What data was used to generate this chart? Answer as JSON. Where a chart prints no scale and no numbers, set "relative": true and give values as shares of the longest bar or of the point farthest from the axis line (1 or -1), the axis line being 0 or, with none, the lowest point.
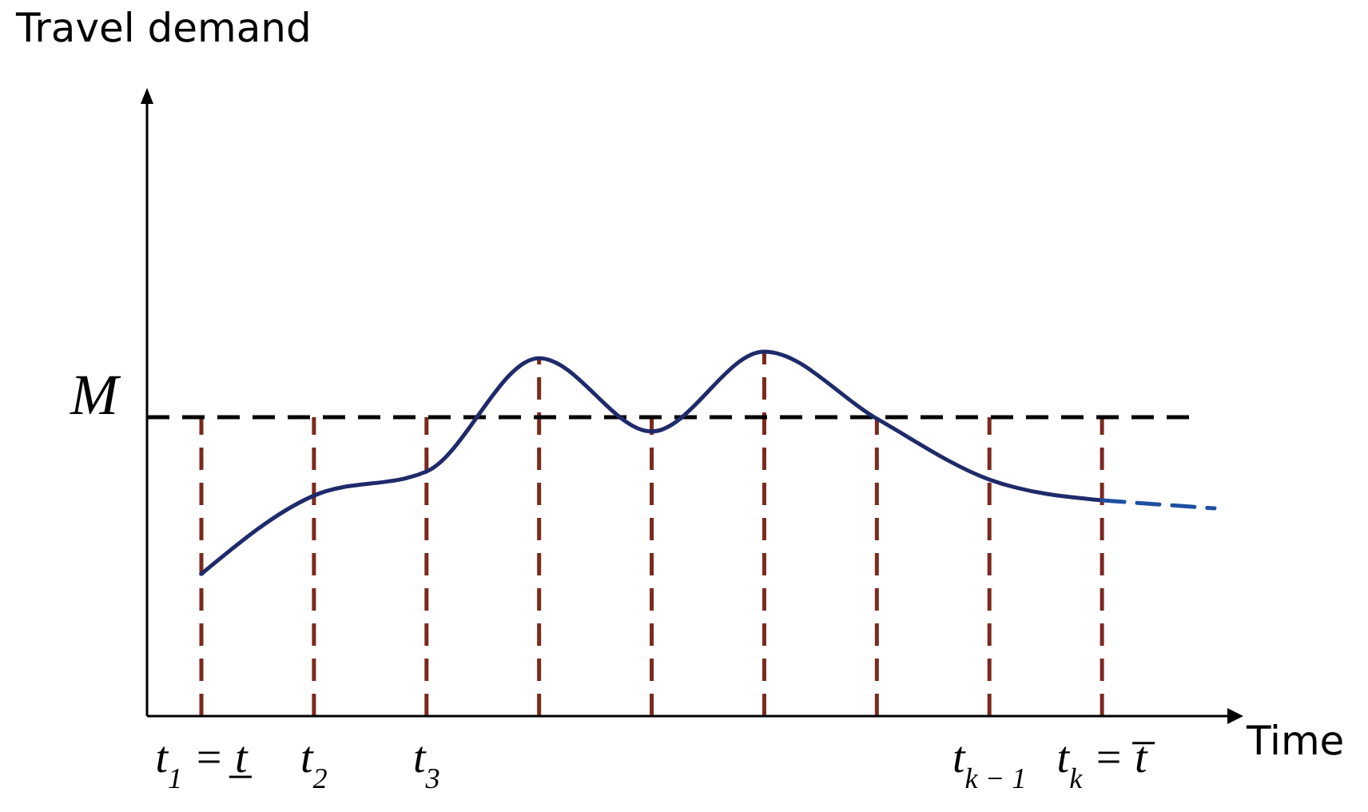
{
  "chart_data": {
    "type": "line",
    "relative": true,
    "annotations": [
      "Travel demand"
    ],
    "xlabel": "Time",
    "grid": "x",
    "categories": [
      "t$_{1}$ = t̲",
      "t$_{2}$",
      "t$_{3}$",
      null,
      null,
      null,
      null,
      "t$_{k − 1}$",
      "t$_{k}$ = t̅",
      null
    ],
    "series": [
      {
        "color": "#1f2a6b",
        "line_style": "solid",
        "values": [
          0.39,
          0.605,
          0.671,
          0.982,
          0.781,
          1,
          0.816,
          0.649,
          0.592,
          null
        ]
      },
      {
        "color": "#1f4fa0",
        "line_style": "dashed",
        "values": [
          null,
          null,
          null,
          null,
          null,
          null,
          null,
          null,
          0.592,
          0.57
        ]
      }
    ],
    "ref_lines": [
      {
        "axis": "y",
        "value": 0.82,
        "label": "M",
        "color": "#000000",
        "line_style": "dashed"
      }
    ]
  }
}
